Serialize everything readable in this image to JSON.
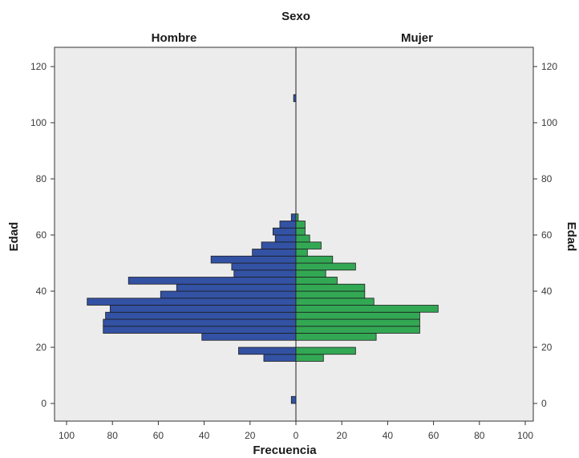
{
  "chart_data": {
    "type": "bar",
    "title": "Sexo",
    "panels": [
      "Hombre",
      "Mujer"
    ],
    "xlabel": "Frecuencia",
    "ylabel_left": "Edad",
    "ylabel_right": "Edad",
    "xlim": [
      0,
      100
    ],
    "ylim": [
      -5,
      125
    ],
    "x_ticks": [
      100,
      80,
      60,
      40,
      20,
      0,
      20,
      40,
      60,
      80,
      100
    ],
    "y_ticks": [
      0,
      20,
      40,
      60,
      80,
      100,
      120
    ],
    "bin_width": 2.5,
    "grid": false,
    "series": [
      {
        "name": "Hombre",
        "color": "#3352A4",
        "bins": [
          {
            "age": 1.25,
            "value": 2
          },
          {
            "age": 16.25,
            "value": 14
          },
          {
            "age": 18.75,
            "value": 25
          },
          {
            "age": 23.75,
            "value": 41
          },
          {
            "age": 26.25,
            "value": 84
          },
          {
            "age": 28.75,
            "value": 84
          },
          {
            "age": 31.25,
            "value": 83
          },
          {
            "age": 33.75,
            "value": 81
          },
          {
            "age": 36.25,
            "value": 91
          },
          {
            "age": 38.75,
            "value": 59
          },
          {
            "age": 41.25,
            "value": 52
          },
          {
            "age": 43.75,
            "value": 73
          },
          {
            "age": 46.25,
            "value": 27
          },
          {
            "age": 48.75,
            "value": 28
          },
          {
            "age": 51.25,
            "value": 37
          },
          {
            "age": 53.75,
            "value": 19
          },
          {
            "age": 56.25,
            "value": 15
          },
          {
            "age": 58.75,
            "value": 9
          },
          {
            "age": 61.25,
            "value": 10
          },
          {
            "age": 63.75,
            "value": 7
          },
          {
            "age": 66.25,
            "value": 2
          },
          {
            "age": 108.75,
            "value": 1
          }
        ]
      },
      {
        "name": "Mujer",
        "color": "#33A854",
        "bins": [
          {
            "age": 1.25,
            "value": 0
          },
          {
            "age": 16.25,
            "value": 12
          },
          {
            "age": 18.75,
            "value": 26
          },
          {
            "age": 23.75,
            "value": 35
          },
          {
            "age": 26.25,
            "value": 54
          },
          {
            "age": 28.75,
            "value": 54
          },
          {
            "age": 31.25,
            "value": 54
          },
          {
            "age": 33.75,
            "value": 62
          },
          {
            "age": 36.25,
            "value": 34
          },
          {
            "age": 38.75,
            "value": 30
          },
          {
            "age": 41.25,
            "value": 30
          },
          {
            "age": 43.75,
            "value": 18
          },
          {
            "age": 46.25,
            "value": 13
          },
          {
            "age": 48.75,
            "value": 26
          },
          {
            "age": 51.25,
            "value": 16
          },
          {
            "age": 53.75,
            "value": 5
          },
          {
            "age": 56.25,
            "value": 11
          },
          {
            "age": 58.75,
            "value": 6
          },
          {
            "age": 61.25,
            "value": 4
          },
          {
            "age": 63.75,
            "value": 4
          },
          {
            "age": 66.25,
            "value": 1
          }
        ]
      }
    ]
  }
}
